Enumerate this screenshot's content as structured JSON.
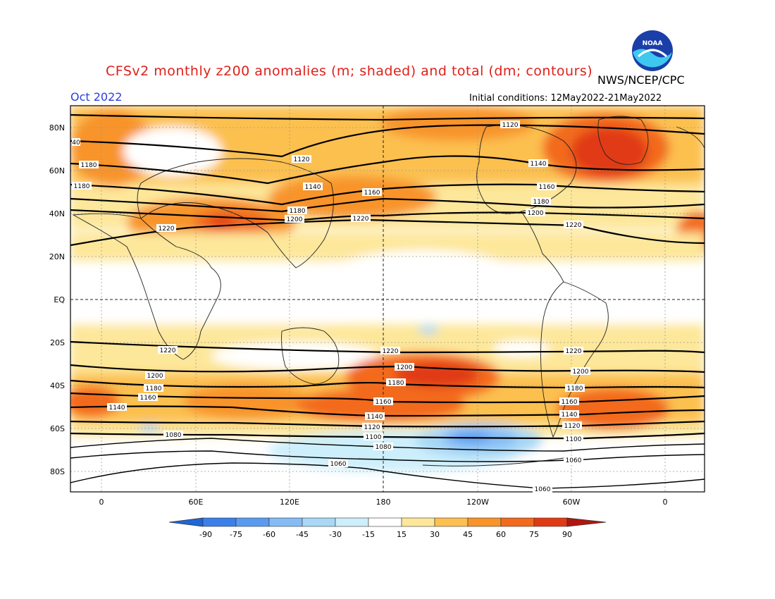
{
  "header": {
    "title": "CFSv2 monthly z200 anomalies (m; shaded) and total (dm; contours)",
    "month": "Oct 2022",
    "org": "NWS/NCEP/CPC",
    "initial_conditions": "Initial conditions: 12May2022-21May2022",
    "logo_text": "NOAA"
  },
  "map": {
    "lat_labels": [
      "80N",
      "60N",
      "40N",
      "20N",
      "EQ",
      "20S",
      "40S",
      "60S",
      "80S"
    ],
    "lon_labels": [
      "0",
      "60E",
      "120E",
      "180",
      "120W",
      "60W",
      "0"
    ],
    "contour_labels": [
      "1220",
      "1200",
      "1180",
      "1160",
      "1140",
      "1120",
      "1100",
      "1080",
      "1060",
      "40"
    ]
  },
  "colorbar": {
    "ticks": [
      "-90",
      "-75",
      "-60",
      "-45",
      "-30",
      "-15",
      "15",
      "30",
      "45",
      "60",
      "75",
      "90"
    ],
    "colors": [
      "#1f66d8",
      "#3a80e8",
      "#5a9bf0",
      "#86bcf5",
      "#a8d8f6",
      "#cdeffb",
      "#ffffff",
      "#fde79a",
      "#fcc050",
      "#f8942a",
      "#f36a1c",
      "#e03a14",
      "#b0160e",
      "#8a0d0a"
    ]
  }
}
